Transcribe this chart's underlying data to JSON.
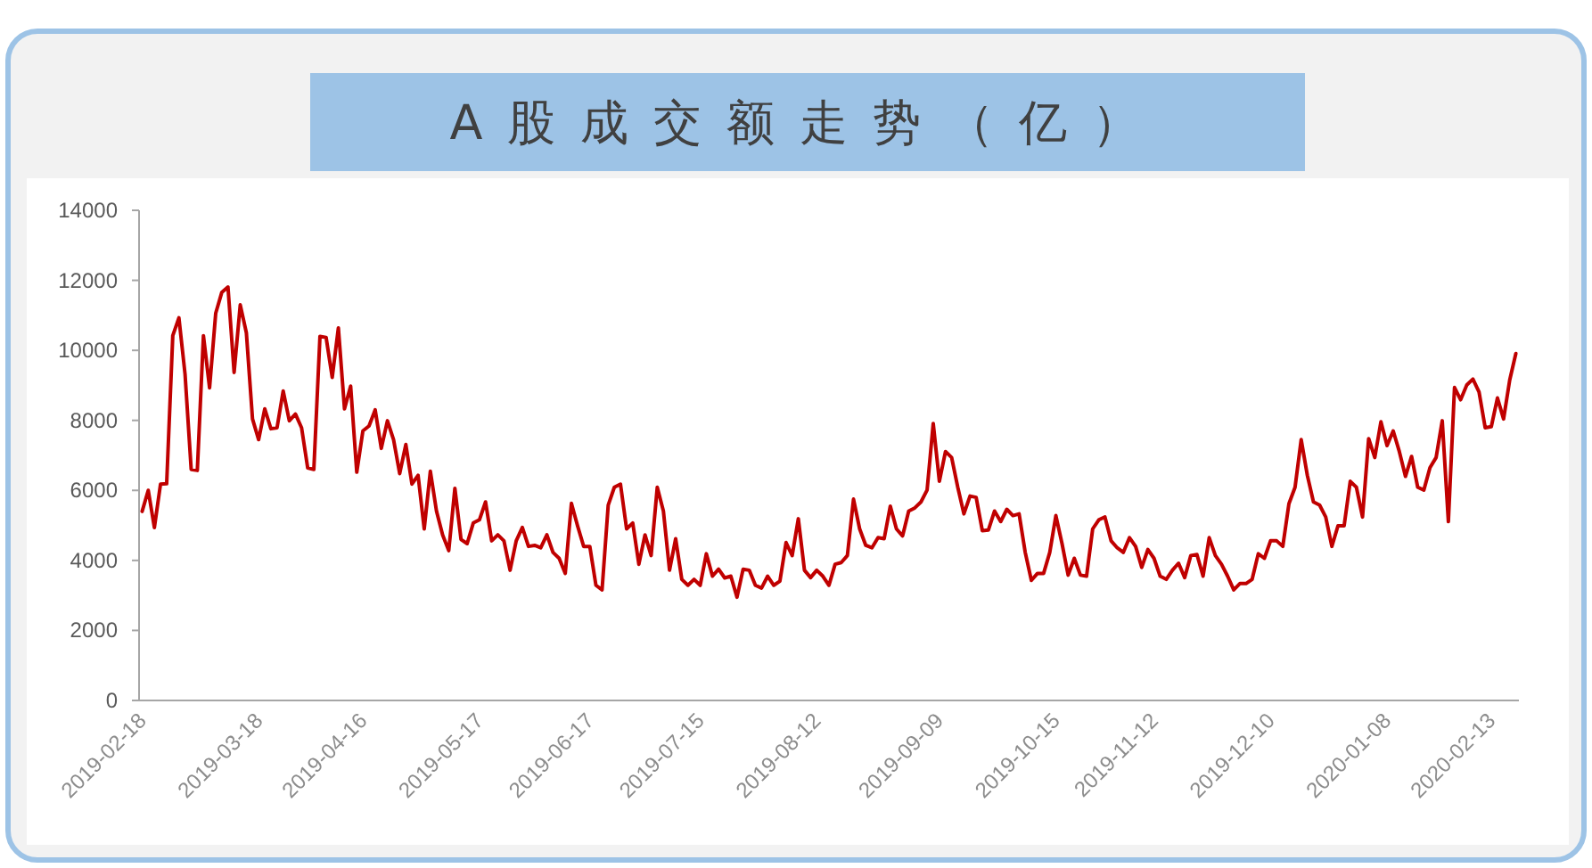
{
  "chart_data": {
    "type": "line",
    "title": "A股成交额走势（亿）",
    "categories": [
      "2019-02-18",
      null,
      null,
      null,
      null,
      null,
      null,
      null,
      null,
      null,
      null,
      null,
      null,
      null,
      null,
      null,
      null,
      null,
      null,
      "2019-03-18",
      null,
      null,
      null,
      null,
      null,
      null,
      null,
      null,
      null,
      null,
      null,
      null,
      null,
      null,
      null,
      null,
      "2019-04-16",
      null,
      null,
      null,
      null,
      null,
      null,
      null,
      null,
      null,
      null,
      null,
      null,
      null,
      null,
      null,
      null,
      null,
      null,
      "2019-05-17",
      null,
      null,
      null,
      null,
      null,
      null,
      null,
      null,
      null,
      null,
      null,
      null,
      null,
      null,
      null,
      null,
      null,
      "2019-06-17",
      null,
      null,
      null,
      null,
      null,
      null,
      null,
      null,
      null,
      null,
      null,
      null,
      null,
      null,
      null,
      null,
      null,
      "2019-07-15",
      null,
      null,
      null,
      null,
      null,
      null,
      null,
      null,
      null,
      null,
      null,
      null,
      null,
      null,
      null,
      null,
      null,
      null,
      "2019-08-12",
      null,
      null,
      null,
      null,
      null,
      null,
      null,
      null,
      null,
      null,
      null,
      null,
      null,
      null,
      null,
      null,
      null,
      null,
      null,
      "2019-09-09",
      null,
      null,
      null,
      null,
      null,
      null,
      null,
      null,
      null,
      null,
      null,
      null,
      null,
      null,
      null,
      null,
      null,
      null,
      "2019-10-15",
      null,
      null,
      null,
      null,
      null,
      null,
      null,
      null,
      null,
      null,
      null,
      null,
      null,
      null,
      null,
      "2019-11-12",
      null,
      null,
      null,
      null,
      null,
      null,
      null,
      null,
      null,
      null,
      null,
      null,
      null,
      null,
      null,
      null,
      null,
      null,
      "2019-12-10",
      null,
      null,
      null,
      null,
      null,
      null,
      null,
      null,
      null,
      null,
      null,
      null,
      null,
      null,
      null,
      null,
      null,
      null,
      "2020-01-08",
      null,
      null,
      null,
      null,
      null,
      null,
      null,
      null,
      null,
      null,
      null,
      null,
      null,
      null,
      null,
      null,
      "2020-02-13",
      null,
      null,
      null,
      null
    ],
    "series": [
      {
        "color": "#c00000",
        "values": [
          5400,
          6000,
          4940,
          6180,
          6190,
          10420,
          10930,
          9320,
          6600,
          6570,
          10420,
          8930,
          11060,
          11660,
          11810,
          9370,
          11300,
          10500,
          8040,
          7450,
          8330,
          7760,
          7790,
          8840,
          7990,
          8180,
          7790,
          6640,
          6600,
          10400,
          10370,
          9230,
          10640,
          8330,
          8980,
          6520,
          7700,
          7840,
          8300,
          7200,
          7990,
          7450,
          6480,
          7310,
          6180,
          6430,
          4900,
          6550,
          5410,
          4730,
          4280,
          6060,
          4600,
          4480,
          5070,
          5160,
          5670,
          4560,
          4730,
          4560,
          3720,
          4560,
          4940,
          4400,
          4430,
          4360,
          4730,
          4230,
          4060,
          3630,
          5630,
          4990,
          4400,
          4400,
          3290,
          3160,
          5580,
          6090,
          6180,
          4900,
          5070,
          3890,
          4730,
          4140,
          6090,
          5410,
          3720,
          4620,
          3460,
          3290,
          3460,
          3290,
          4190,
          3550,
          3750,
          3500,
          3550,
          2950,
          3750,
          3720,
          3290,
          3210,
          3550,
          3290,
          3410,
          4510,
          4140,
          5190,
          3720,
          3510,
          3720,
          3550,
          3290,
          3890,
          3940,
          4140,
          5750,
          4900,
          4430,
          4360,
          4650,
          4620,
          5550,
          4900,
          4700,
          5410,
          5500,
          5670,
          6010,
          7910,
          6260,
          7110,
          6940,
          6090,
          5330,
          5840,
          5800,
          4850,
          4870,
          5410,
          5110,
          5460,
          5280,
          5330,
          4230,
          3430,
          3630,
          3630,
          4230,
          5280,
          4480,
          3580,
          4060,
          3580,
          3550,
          4900,
          5160,
          5240,
          4560,
          4360,
          4230,
          4650,
          4400,
          3800,
          4310,
          4060,
          3550,
          3460,
          3720,
          3920,
          3510,
          4140,
          4170,
          3550,
          4650,
          4140,
          3890,
          3550,
          3160,
          3340,
          3340,
          3460,
          4190,
          4060,
          4560,
          4560,
          4400,
          5620,
          6090,
          7450,
          6430,
          5670,
          5580,
          5240,
          4400,
          4990,
          4990,
          6260,
          6090,
          5240,
          7480,
          6940,
          7960,
          7280,
          7700,
          7110,
          6400,
          6970,
          6090,
          6010,
          6650,
          6940,
          7990,
          5110,
          8940,
          8590,
          9010,
          9180,
          8810,
          7790,
          7820,
          8640,
          8040,
          9150,
          9910
        ]
      }
    ],
    "ylim": [
      0,
      14000
    ],
    "yticks": [
      0,
      2000,
      4000,
      6000,
      8000,
      10000,
      12000,
      14000
    ],
    "grid": false
  }
}
